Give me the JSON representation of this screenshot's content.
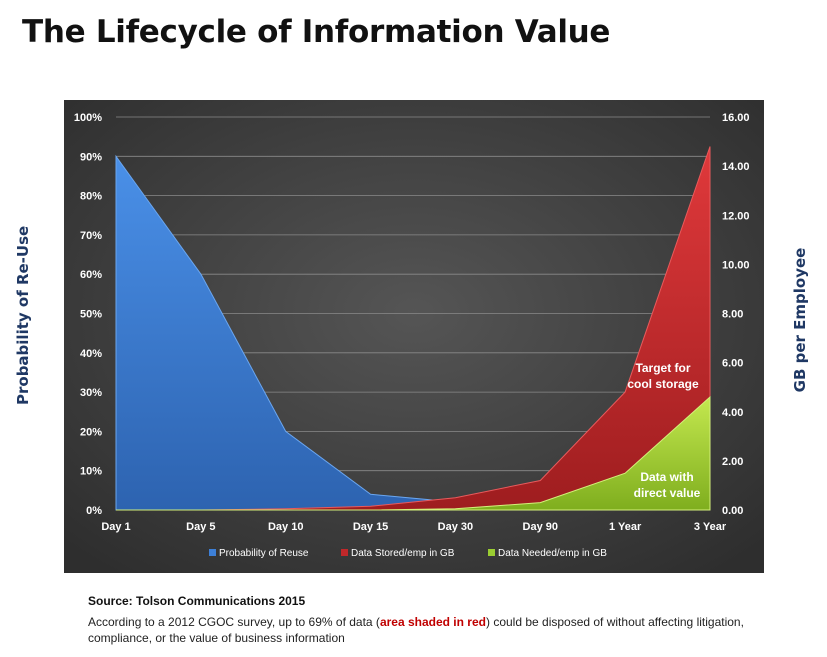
{
  "title": "The Lifecycle of Information Value",
  "y_left_title": "Probability  of Re-Use",
  "y_right_title": "GB per Employee",
  "source": "Source: Tolson Communications 2015",
  "note": {
    "before": "According to a 2012 CGOC survey, up to 69% of data (",
    "highlight": "area shaded in red",
    "after": ") could be disposed of without affecting litigation, compliance, or the value of business information"
  },
  "colors": {
    "background": "#2e2e2e",
    "reuse": "#3d7fd6",
    "stored": "#c0282a",
    "needed": "#9acd32"
  },
  "chart_data": {
    "type": "area",
    "categories": [
      "Day 1",
      "Day 5",
      "Day 10",
      "Day 15",
      "Day 30",
      "Day 90",
      "1 Year",
      "3 Year"
    ],
    "series": [
      {
        "name": "Probability of Reuse",
        "axis": "left",
        "values": [
          90,
          60,
          20,
          4,
          2,
          null,
          null,
          null
        ]
      },
      {
        "name": "Data Stored/emp in GB",
        "axis": "right",
        "values": [
          0,
          0,
          0.05,
          0.15,
          0.5,
          1.2,
          4.8,
          14.8
        ]
      },
      {
        "name": "Data Needed/emp in GB",
        "axis": "right",
        "values": [
          0,
          0,
          0,
          0,
          0.05,
          0.3,
          1.5,
          4.6
        ]
      }
    ],
    "y_left": {
      "min": 0,
      "max": 100,
      "ticks": [
        "0%",
        "10%",
        "20%",
        "30%",
        "40%",
        "50%",
        "60%",
        "70%",
        "80%",
        "90%",
        "100%"
      ]
    },
    "y_right": {
      "min": 0,
      "max": 16,
      "ticks": [
        "0.00",
        "2.00",
        "4.00",
        "6.00",
        "8.00",
        "10.00",
        "12.00",
        "14.00",
        "16.00"
      ]
    },
    "grid": true,
    "legend": "bottom",
    "annotations": [
      {
        "text": "Target for cool storage",
        "lines": [
          "Target for",
          "cool storage"
        ]
      },
      {
        "text": "Data with direct value",
        "lines": [
          "Data with",
          "direct value"
        ]
      }
    ]
  }
}
